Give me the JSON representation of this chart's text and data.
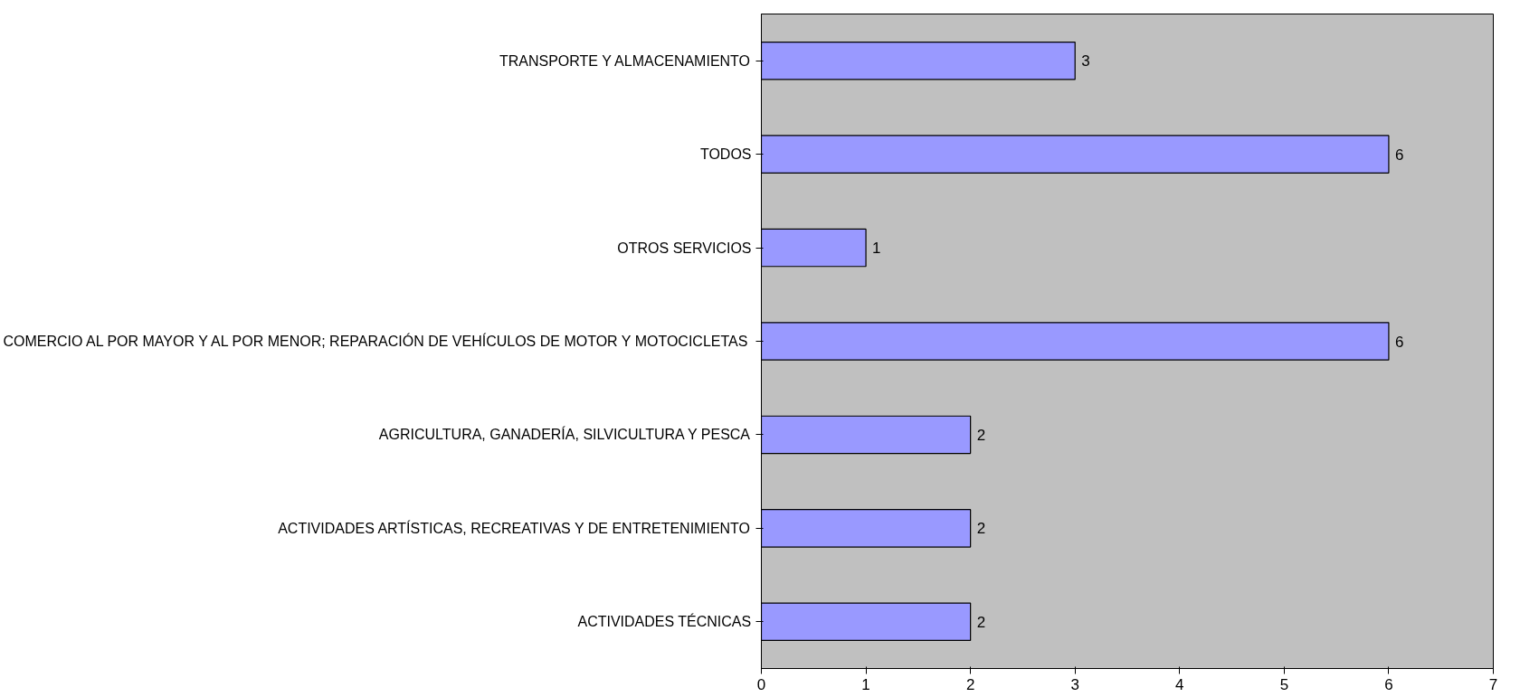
{
  "chart_data": {
    "type": "bar",
    "orientation": "horizontal",
    "categories": [
      "TRANSPORTE Y ALMACENAMIENTO",
      "TODOS",
      "OTROS SERVICIOS",
      "COMERCIO AL POR MAYOR Y AL POR MENOR; REPARACIÓN DE VEHÍCULOS DE MOTOR Y MOTOCICLETAS",
      "AGRICULTURA, GANADERÍA, SILVICULTURA Y PESCA",
      "ACTIVIDADES ARTÍSTICAS, RECREATIVAS Y DE ENTRETENIMIENTO",
      "ACTIVIDADES TÉCNICAS"
    ],
    "values": [
      3,
      6,
      1,
      6,
      2,
      2,
      2
    ],
    "color": "#9999ff",
    "xlim": [
      0,
      7
    ],
    "xticks": [
      0,
      1,
      2,
      3,
      4,
      5,
      6,
      7
    ],
    "grid": false,
    "data_labels": true
  }
}
